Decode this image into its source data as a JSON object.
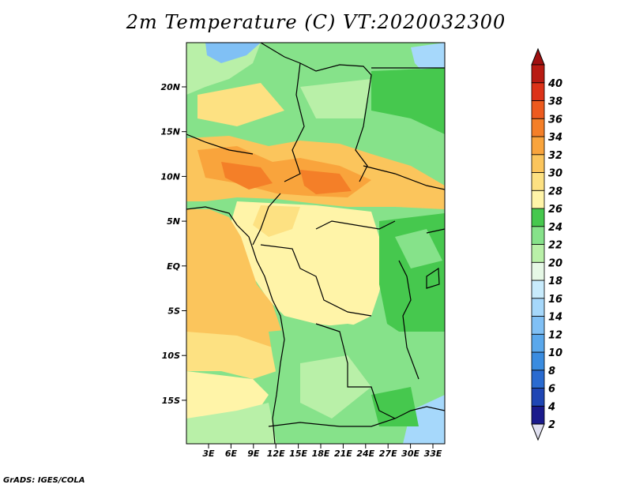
{
  "title": "2m Temperature (C) VT:2020032300",
  "credit": "GrADS: IGES/COLA",
  "map": {
    "lat_labels": [
      "20N",
      "15N",
      "10N",
      "5N",
      "EQ",
      "5S",
      "10S",
      "15S"
    ],
    "lon_labels": [
      "3E",
      "6E",
      "9E",
      "12E",
      "15E",
      "18E",
      "21E",
      "24E",
      "27E",
      "30E",
      "33E"
    ]
  },
  "colorbar": {
    "labels": [
      "2",
      "4",
      "6",
      "8",
      "10",
      "12",
      "14",
      "16",
      "18",
      "20",
      "22",
      "24",
      "26",
      "28",
      "30",
      "32",
      "34",
      "36",
      "38",
      "40"
    ],
    "colors": [
      "#1a1a8c",
      "#1f46b4",
      "#2a6bd0",
      "#3a8ce0",
      "#5aa8ec",
      "#80c0f5",
      "#a6d8fb",
      "#c8ebfc",
      "#e6f8e6",
      "#b9f0a8",
      "#86e28a",
      "#46c84e",
      "#fff4a8",
      "#fde182",
      "#fbc55c",
      "#f9a43c",
      "#f47f28",
      "#ed5a1e",
      "#dc3218",
      "#b81a12"
    ],
    "low_cap_color": "#e0e0f0",
    "high_cap_color": "#a01010"
  }
}
